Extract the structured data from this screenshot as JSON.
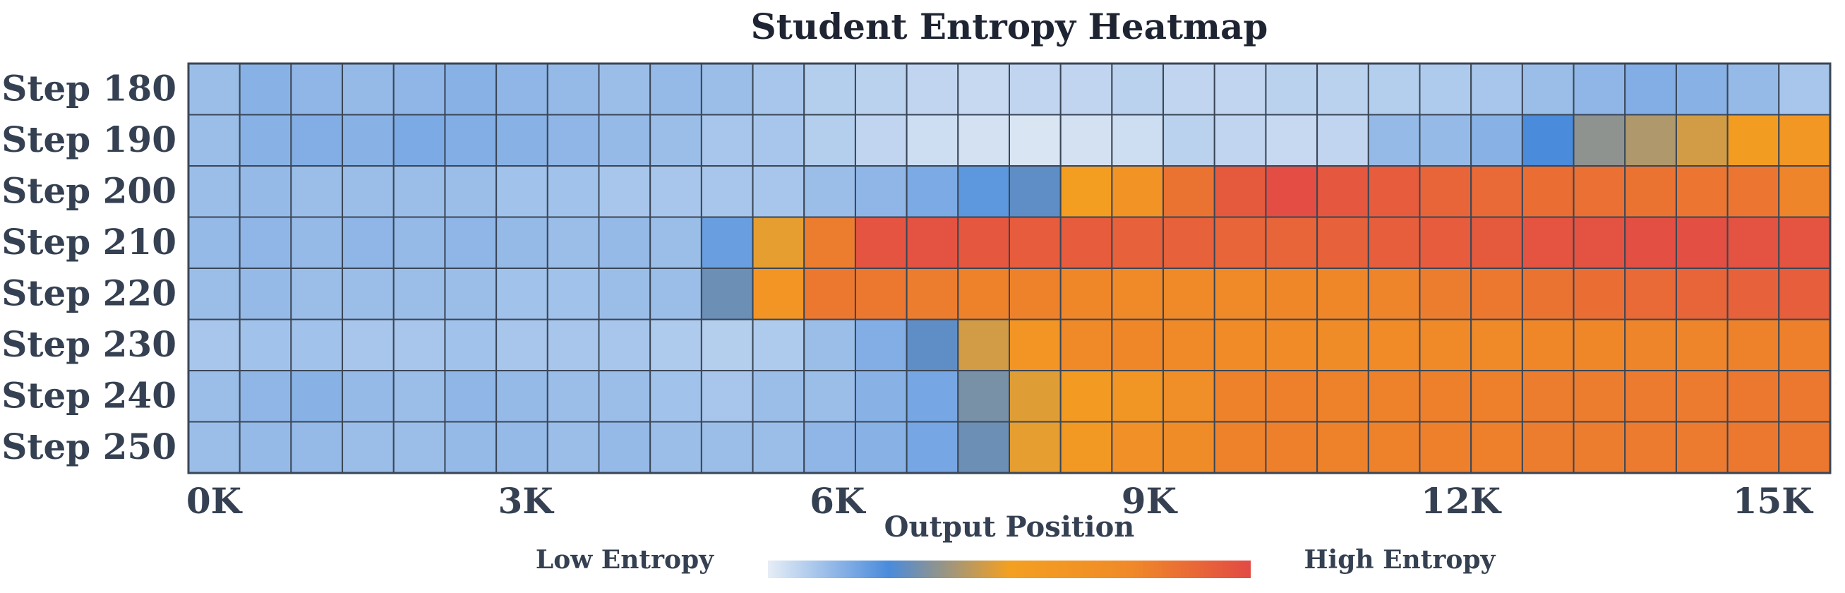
{
  "chart_data": {
    "type": "heatmap",
    "title": "Student Entropy Heatmap",
    "xlabel": "Output Position",
    "ylabel": "",
    "row_labels": [
      "Step 180",
      "Step 190",
      "Step 200",
      "Step 210",
      "Step 220",
      "Step 230",
      "Step 240",
      "Step 250"
    ],
    "x_tick_labels": [
      "0K",
      "3K",
      "6K",
      "9K",
      "12K",
      "15K"
    ],
    "x_tick_values": [
      0,
      3000,
      6000,
      9000,
      12000,
      15000
    ],
    "x_range": [
      0,
      15800
    ],
    "n_columns": 32,
    "value_range": [
      0,
      1
    ],
    "colorbar": {
      "low_label": "Low Entropy",
      "high_label": "High Entropy",
      "colors": [
        "#e6edf6",
        "#4a8bdb",
        "#f3a020",
        "#f08a28",
        "#e24a44"
      ]
    },
    "values": [
      [
        0.12,
        0.15,
        0.14,
        0.13,
        0.14,
        0.15,
        0.14,
        0.13,
        0.12,
        0.13,
        0.12,
        0.1,
        0.08,
        0.07,
        0.06,
        0.05,
        0.06,
        0.06,
        0.07,
        0.06,
        0.06,
        0.07,
        0.07,
        0.08,
        0.09,
        0.1,
        0.12,
        0.14,
        0.16,
        0.15,
        0.13,
        0.1
      ],
      [
        0.12,
        0.15,
        0.16,
        0.15,
        0.17,
        0.16,
        0.15,
        0.14,
        0.13,
        0.12,
        0.1,
        0.1,
        0.08,
        0.06,
        0.04,
        0.03,
        0.02,
        0.03,
        0.04,
        0.07,
        0.06,
        0.05,
        0.06,
        0.13,
        0.13,
        0.15,
        0.25,
        0.35,
        0.4,
        0.45,
        0.55,
        0.6
      ],
      [
        0.12,
        0.13,
        0.12,
        0.12,
        0.12,
        0.12,
        0.11,
        0.11,
        0.1,
        0.1,
        0.1,
        0.1,
        0.12,
        0.14,
        0.17,
        0.22,
        0.28,
        0.52,
        0.65,
        0.84,
        0.94,
        0.99,
        0.95,
        0.93,
        0.9,
        0.88,
        0.86,
        0.85,
        0.84,
        0.83,
        0.83,
        0.77
      ],
      [
        0.13,
        0.14,
        0.13,
        0.14,
        0.13,
        0.14,
        0.13,
        0.12,
        0.13,
        0.12,
        0.2,
        0.48,
        0.8,
        0.96,
        0.97,
        0.95,
        0.93,
        0.93,
        0.91,
        0.91,
        0.9,
        0.9,
        0.91,
        0.92,
        0.93,
        0.94,
        0.96,
        0.97,
        0.98,
        0.98,
        0.97,
        0.96
      ],
      [
        0.12,
        0.13,
        0.12,
        0.12,
        0.12,
        0.12,
        0.11,
        0.11,
        0.12,
        0.12,
        0.3,
        0.62,
        0.82,
        0.82,
        0.8,
        0.78,
        0.78,
        0.76,
        0.75,
        0.75,
        0.75,
        0.76,
        0.76,
        0.77,
        0.8,
        0.82,
        0.84,
        0.86,
        0.88,
        0.9,
        0.91,
        0.92
      ],
      [
        0.1,
        0.11,
        0.11,
        0.1,
        0.1,
        0.11,
        0.1,
        0.1,
        0.1,
        0.09,
        0.08,
        0.09,
        0.12,
        0.16,
        0.28,
        0.45,
        0.62,
        0.75,
        0.76,
        0.75,
        0.74,
        0.74,
        0.73,
        0.74,
        0.75,
        0.75,
        0.76,
        0.76,
        0.77,
        0.77,
        0.78,
        0.79
      ],
      [
        0.12,
        0.14,
        0.15,
        0.13,
        0.12,
        0.14,
        0.13,
        0.12,
        0.12,
        0.11,
        0.1,
        0.12,
        0.12,
        0.15,
        0.18,
        0.32,
        0.47,
        0.57,
        0.63,
        0.71,
        0.78,
        0.79,
        0.78,
        0.78,
        0.79,
        0.79,
        0.8,
        0.8,
        0.81,
        0.81,
        0.82,
        0.82
      ],
      [
        0.12,
        0.13,
        0.13,
        0.12,
        0.12,
        0.13,
        0.13,
        0.12,
        0.13,
        0.12,
        0.12,
        0.12,
        0.14,
        0.15,
        0.18,
        0.3,
        0.48,
        0.58,
        0.68,
        0.73,
        0.78,
        0.79,
        0.78,
        0.78,
        0.79,
        0.79,
        0.8,
        0.8,
        0.81,
        0.81,
        0.82,
        0.82
      ]
    ]
  }
}
